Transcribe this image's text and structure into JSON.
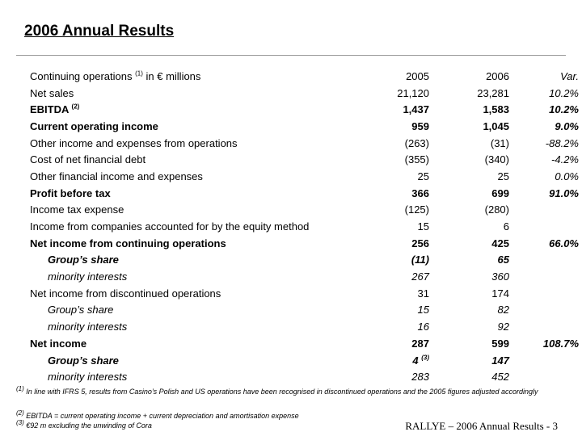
{
  "title": "2006 Annual Results",
  "header": {
    "label": "Continuing operations",
    "label_sup": "(1)",
    "label_suffix": " in € millions",
    "col_2005": "2005",
    "col_2006": "2006",
    "col_var": "Var."
  },
  "rows": [
    {
      "label": "Net sales",
      "sup": "",
      "v2005": "21,120",
      "v2006": "23,281",
      "var": "10.2%"
    },
    {
      "label": "EBITDA",
      "sup": "(2)",
      "v2005": "1,437",
      "v2006": "1,583",
      "var": "10.2%"
    },
    {
      "label": "Current operating income",
      "sup": "",
      "v2005": "959",
      "v2006": "1,045",
      "var": "9.0%"
    },
    {
      "label": "Other income and expenses from operations",
      "sup": "",
      "v2005": "(263)",
      "v2006": "(31)",
      "var": "-88.2%"
    },
    {
      "label": "Cost of net financial debt",
      "sup": "",
      "v2005": "(355)",
      "v2006": "(340)",
      "var": "-4.2%"
    },
    {
      "label": "Other financial income and expenses",
      "sup": "",
      "v2005": "25",
      "v2006": "25",
      "var": "0.0%"
    },
    {
      "label": "Profit before tax",
      "sup": "",
      "v2005": "366",
      "v2006": "699",
      "var": "91.0%"
    },
    {
      "label": "Income tax expense",
      "sup": "",
      "v2005": "(125)",
      "v2006": "(280)",
      "var": ""
    },
    {
      "label": "Income from companies accounted for by the equity method",
      "sup": "",
      "v2005": "15",
      "v2006": "6",
      "var": ""
    },
    {
      "label": "Net income from continuing operations",
      "sup": "",
      "v2005": "256",
      "v2006": "425",
      "var": "66.0%"
    },
    {
      "label": "Group’s share",
      "sup": "",
      "v2005": "(11)",
      "v2006": "65",
      "var": ""
    },
    {
      "label": "minority interests",
      "sup": "",
      "v2005": "267",
      "v2006": "360",
      "var": ""
    },
    {
      "label": "Net income from discontinued operations",
      "sup": "",
      "v2005": "31",
      "v2006": "174",
      "var": ""
    },
    {
      "label": "Group’s share",
      "sup": "",
      "v2005": "15",
      "v2006": "82",
      "var": ""
    },
    {
      "label": "minority interests",
      "sup": "",
      "v2005": "16",
      "v2006": "92",
      "var": ""
    },
    {
      "label": "Net income",
      "sup": "",
      "v2005": "287",
      "v2006": "599",
      "var": "108.7%"
    },
    {
      "label": "Group’s share",
      "sup": "",
      "v2005": "4",
      "v2005_sup": "(3)",
      "v2006": "147",
      "var": ""
    },
    {
      "label": "minority interests",
      "sup": "",
      "v2005": "283",
      "v2006": "452",
      "var": ""
    }
  ],
  "footnotes": {
    "fn1_mark": "(1)",
    "fn1_text": " In line with IFRS 5, results from Casino’s Polish and US operations have been recognised in discontinued operations and the 2005 figures adjusted accordingly",
    "fn2_mark": "(2)",
    "fn2_text": " EBITDA = current operating income + current depreciation and amortisation expense",
    "fn3_mark": "(3)",
    "fn3_text": " €92 m excluding the unwinding of Cora"
  },
  "footer": "RALLYE – 2006 Annual Results  -  3"
}
